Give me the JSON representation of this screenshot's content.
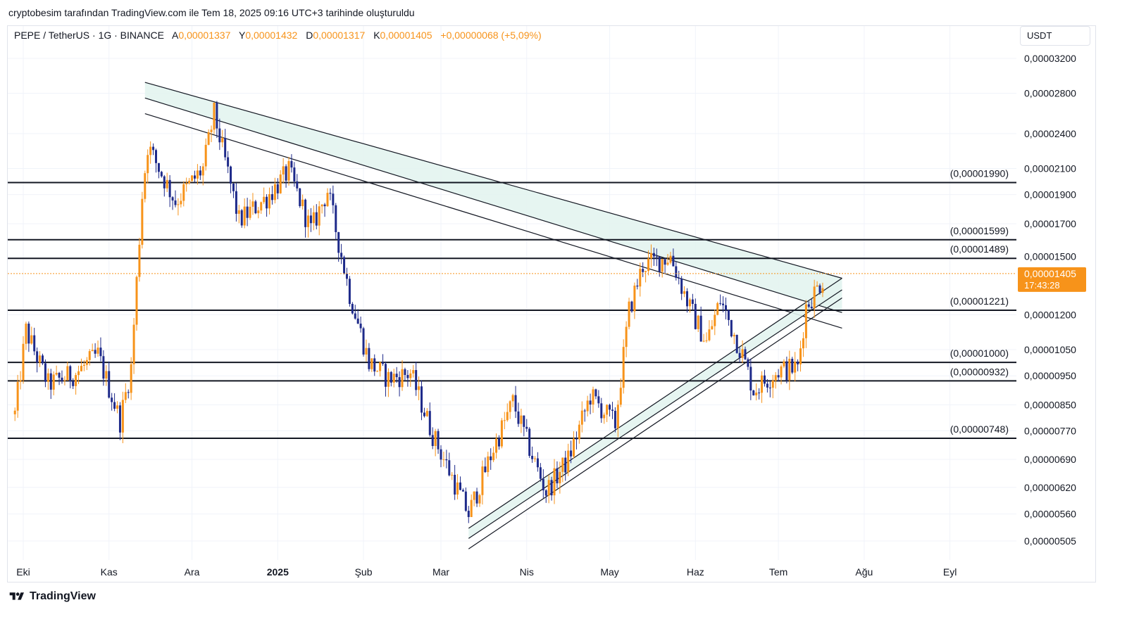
{
  "caption": "cryptobesim tarafından TradingView.com ile Tem 18, 2025 09:16 UTC+3 tarihinde oluşturuldu",
  "header": {
    "symbol": "PEPE / TetherUS · 1G · BINANCE",
    "open_label": "A",
    "open_value": "0,00001337",
    "high_label": "Y",
    "high_value": "0,00001432",
    "low_label": "D",
    "low_value": "0,00001317",
    "close_label": "K",
    "close_value": "0,00001405",
    "change": "+0,00000068 (+5,09%)"
  },
  "currency": "USDT",
  "last_price": {
    "value": "0,00001405",
    "countdown": "17:43:28"
  },
  "brand": {
    "name": "TradingView",
    "icon": "tradingview-logo-icon"
  },
  "colors": {
    "up": "#f7931a",
    "down": "#1e2a8a",
    "channel_fill": "#e3f4ef",
    "line": "#131722",
    "price_tag": "#f7931a"
  },
  "chart_data": {
    "type": "candlestick",
    "scale": "log",
    "y_ticks": [
      "0,00003200",
      "0,00002800",
      "0,00002400",
      "0,00002100",
      "0,00001900",
      "0,00001700",
      "0,00001500",
      "0,00001200",
      "0,00001050",
      "0,00000950",
      "0,00000850",
      "0,00000770",
      "0,00000690",
      "0,00000620",
      "0,00000560",
      "0,00000505"
    ],
    "x_labels": [
      "Eki",
      "Kas",
      "Ara",
      "2025",
      "Şub",
      "Mar",
      "Nis",
      "May",
      "Haz",
      "Tem",
      "Ağu",
      "Eyl"
    ],
    "levels": [
      {
        "value": 1.99e-05,
        "label": "(0,00001990)"
      },
      {
        "value": 1.599e-05,
        "label": "(0,00001599)"
      },
      {
        "value": 1.489e-05,
        "label": "(0,00001489)"
      },
      {
        "value": 1.221e-05,
        "label": "(0,00001221)"
      },
      {
        "value": 1e-05,
        "label": "(0,00001000)"
      },
      {
        "value": 9.32e-06,
        "label": "(0,00000932)"
      },
      {
        "value": 7.48e-06,
        "label": "(0,00000748)"
      }
    ],
    "channels": [
      {
        "name": "descending",
        "upper": [
          [
            "2024-11-14",
            2.92e-05
          ],
          [
            "2025-07-24",
            1.38e-05
          ]
        ],
        "lower": [
          [
            "2024-11-14",
            2.59e-05
          ],
          [
            "2025-07-24",
            1.14e-05
          ]
        ],
        "mid": [
          [
            "2024-11-14",
            2.75e-05
          ],
          [
            "2025-07-24",
            1.21e-05
          ]
        ]
      },
      {
        "name": "ascending",
        "upper": [
          [
            "2025-03-11",
            5.3e-06
          ],
          [
            "2025-07-24",
            1.38e-05
          ]
        ],
        "lower": [
          [
            "2025-03-11",
            4.9e-06
          ],
          [
            "2025-07-24",
            1.28e-05
          ]
        ],
        "mid": [
          [
            "2025-03-11",
            5.1e-06
          ],
          [
            "2025-07-24",
            1.32e-05
          ]
        ]
      }
    ],
    "price_path": [
      [
        "2024-09-28",
        8.2e-06
      ],
      [
        "2024-10-02",
        1.13e-05
      ],
      [
        "2024-10-10",
        9.2e-06
      ],
      [
        "2024-10-20",
        9.6e-06
      ],
      [
        "2024-10-28",
        1.03e-05
      ],
      [
        "2024-11-05",
        8e-06
      ],
      [
        "2024-11-09",
        9.8e-06
      ],
      [
        "2024-11-13",
        1.9e-05
      ],
      [
        "2024-11-15",
        2.29e-05
      ],
      [
        "2024-11-25",
        1.85e-05
      ],
      [
        "2024-12-05",
        2.1e-05
      ],
      [
        "2024-12-09",
        2.59e-05
      ],
      [
        "2024-12-18",
        1.72e-05
      ],
      [
        "2024-12-28",
        1.88e-05
      ],
      [
        "2025-01-05",
        2.08e-05
      ],
      [
        "2025-01-13",
        1.66e-05
      ],
      [
        "2025-01-19",
        1.93e-05
      ],
      [
        "2025-01-27",
        1.3e-05
      ],
      [
        "2025-02-03",
        1e-05
      ],
      [
        "2025-02-10",
        9.4e-06
      ],
      [
        "2025-02-18",
        9.6e-06
      ],
      [
        "2025-02-26",
        7.6e-06
      ],
      [
        "2025-03-04",
        6.6e-06
      ],
      [
        "2025-03-11",
        5.6e-06
      ],
      [
        "2025-03-20",
        7.2e-06
      ],
      [
        "2025-03-27",
        8.6e-06
      ],
      [
        "2025-04-04",
        6.8e-06
      ],
      [
        "2025-04-08",
        6.1e-06
      ],
      [
        "2025-04-16",
        6.9e-06
      ],
      [
        "2025-04-24",
        8.8e-06
      ],
      [
        "2025-05-03",
        7.9e-06
      ],
      [
        "2025-05-08",
        1.22e-05
      ],
      [
        "2025-05-13",
        1.45e-05
      ],
      [
        "2025-05-23",
        1.5e-05
      ],
      [
        "2025-05-30",
        1.23e-05
      ],
      [
        "2025-06-05",
        1.08e-05
      ],
      [
        "2025-06-10",
        1.27e-05
      ],
      [
        "2025-06-18",
        1.03e-05
      ],
      [
        "2025-06-22",
        9e-06
      ],
      [
        "2025-07-01",
        9.7e-06
      ],
      [
        "2025-07-08",
        9.8e-06
      ],
      [
        "2025-07-11",
        1.24e-05
      ],
      [
        "2025-07-18",
        1.4e-05
      ]
    ]
  }
}
